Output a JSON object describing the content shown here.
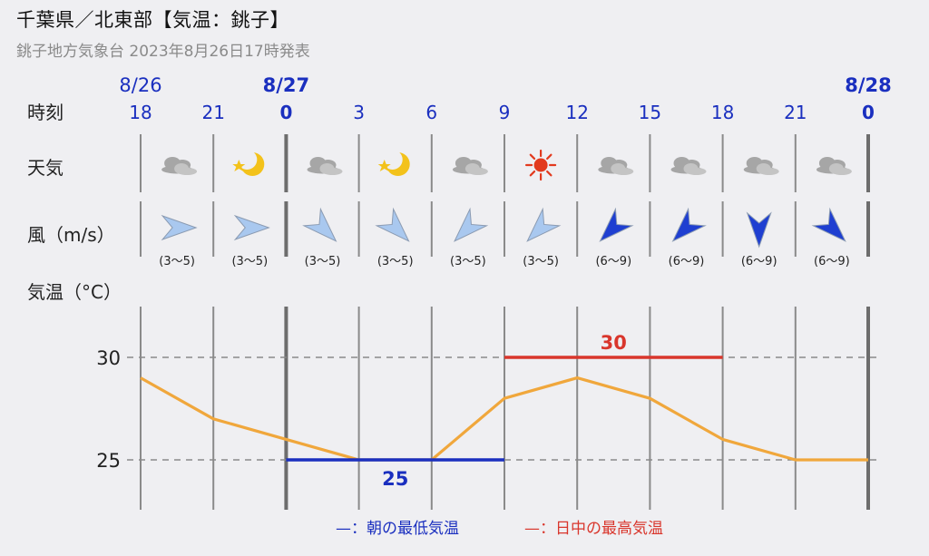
{
  "header": {
    "title": "千葉県／北東部【気温：銚子】",
    "subtitle": "銚子地方気象台 2023年8月26日17時発表"
  },
  "labels": {
    "time_row": "時刻",
    "weather_row": "天気",
    "wind_row": "風（m/s）",
    "temp_row": "気温（°C）"
  },
  "dates": [
    {
      "label": "8/26",
      "hour_index": 0,
      "bold": false
    },
    {
      "label": "8/27",
      "hour_index": 2,
      "bold": true
    },
    {
      "label": "8/28",
      "hour_index": 10,
      "bold": true
    }
  ],
  "hours": [
    "18",
    "21",
    "0",
    "3",
    "6",
    "9",
    "12",
    "15",
    "18",
    "21",
    "0"
  ],
  "bold_hours": [
    2,
    10
  ],
  "weather": [
    "cloud-icon",
    "moon-star-icon",
    "cloud-icon",
    "moon-star-icon",
    "cloud-icon",
    "sun-icon",
    "cloud-icon",
    "cloud-icon",
    "cloud-icon",
    "cloud-icon"
  ],
  "wind": [
    {
      "deg": 90,
      "range": "(3〜5)",
      "strong": false
    },
    {
      "deg": 90,
      "range": "(3〜5)",
      "strong": false
    },
    {
      "deg": 135,
      "range": "(3〜5)",
      "strong": false
    },
    {
      "deg": 135,
      "range": "(3〜5)",
      "strong": false
    },
    {
      "deg": 225,
      "range": "(3〜5)",
      "strong": false
    },
    {
      "deg": 225,
      "range": "(3〜5)",
      "strong": false
    },
    {
      "deg": 225,
      "range": "(6〜9)",
      "strong": true
    },
    {
      "deg": 225,
      "range": "(6〜9)",
      "strong": true
    },
    {
      "deg": 180,
      "range": "(6〜9)",
      "strong": true
    },
    {
      "deg": 135,
      "range": "(6〜9)",
      "strong": true
    }
  ],
  "colors": {
    "line": "#f0a73c",
    "min": "#1a2fbf",
    "max": "#d9362c",
    "wind_light": "#a9c8ef",
    "wind_strong": "#1f3fd1",
    "date": "#1a2fbf",
    "grid": "#8a8a8a"
  },
  "legend": {
    "min_label": "—：朝の最低気温",
    "max_label": "—：日中の最高気温"
  },
  "chart_data": {
    "type": "line",
    "x": [
      "18",
      "21",
      "0",
      "3",
      "6",
      "9",
      "12",
      "15",
      "18",
      "21",
      "0"
    ],
    "series": [
      {
        "values": [
          29,
          27,
          26,
          25,
          25,
          28,
          29,
          28,
          26,
          25,
          25
        ]
      }
    ],
    "min_temp": {
      "value": 25,
      "label": "25",
      "from_index": 2,
      "to_index": 5
    },
    "max_temp": {
      "value": 30,
      "label": "30",
      "from_index": 5,
      "to_index": 8
    },
    "yticks": [
      25,
      30
    ],
    "ylim": [
      23,
      32.5
    ],
    "grid": true,
    "legend": "bottom"
  }
}
